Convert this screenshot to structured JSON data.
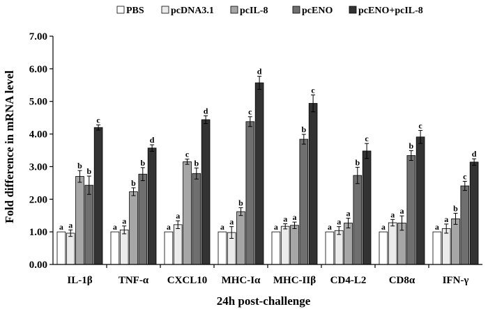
{
  "chart_data": {
    "type": "bar",
    "xlabel": "24h post-challenge",
    "ylabel": "Fold difference in mRNA level",
    "ylim": [
      0,
      7
    ],
    "yticks": [
      "0.00",
      "1.00",
      "2.00",
      "3.00",
      "4.00",
      "5.00",
      "6.00",
      "7.00"
    ],
    "grid": false,
    "legend_position": "top",
    "categories": [
      "IL-1β",
      "TNF-α",
      "CXCL10",
      "MHC-Iα",
      "MHC-IIβ",
      "CD4-L2",
      "CD8α",
      "IFN-γ"
    ],
    "series": [
      {
        "name": "PBS",
        "color": "#ffffff",
        "values": [
          1.0,
          1.0,
          1.0,
          1.0,
          1.0,
          1.0,
          1.0,
          1.0
        ],
        "errors": [
          0.0,
          0.0,
          0.0,
          0.0,
          0.0,
          0.0,
          0.0,
          0.0
        ],
        "labels": [
          "a",
          "a",
          "a",
          "a",
          "a",
          "a",
          "a",
          "a"
        ]
      },
      {
        "name": "pcDNA3.1",
        "color": "#ebebeb",
        "values": [
          0.96,
          1.06,
          1.22,
          0.98,
          1.17,
          1.04,
          1.28,
          1.1
        ],
        "errors": [
          0.1,
          0.12,
          0.12,
          0.18,
          0.08,
          0.12,
          0.1,
          0.14
        ],
        "labels": [
          "a",
          "a",
          "a",
          "a",
          "a",
          "a",
          "a",
          "a"
        ]
      },
      {
        "name": "pcIL-8",
        "color": "#a6a6a6",
        "values": [
          2.7,
          2.23,
          3.15,
          1.62,
          1.2,
          1.27,
          1.27,
          1.4
        ],
        "errors": [
          0.18,
          0.12,
          0.08,
          0.12,
          0.1,
          0.15,
          0.22,
          0.17
        ],
        "labels": [
          "b",
          "b",
          "c",
          "b",
          "a",
          "a",
          "a",
          "b"
        ]
      },
      {
        "name": "pcENO",
        "color": "#6f6f6f",
        "values": [
          2.43,
          2.77,
          2.79,
          4.38,
          3.84,
          2.73,
          3.34,
          2.41
        ],
        "errors": [
          0.28,
          0.2,
          0.17,
          0.15,
          0.15,
          0.25,
          0.15,
          0.14
        ],
        "labels": [
          "b",
          "b",
          "b",
          "c",
          "b",
          "b",
          "b",
          "c"
        ]
      },
      {
        "name": "pcENO+pcIL-8",
        "color": "#333333",
        "values": [
          4.2,
          3.57,
          4.44,
          5.57,
          4.94,
          3.48,
          3.91,
          3.14
        ],
        "errors": [
          0.08,
          0.1,
          0.12,
          0.2,
          0.26,
          0.23,
          0.2,
          0.1
        ],
        "labels": [
          "c",
          "d",
          "d",
          "d",
          "c",
          "c",
          "c",
          "d"
        ]
      }
    ]
  }
}
